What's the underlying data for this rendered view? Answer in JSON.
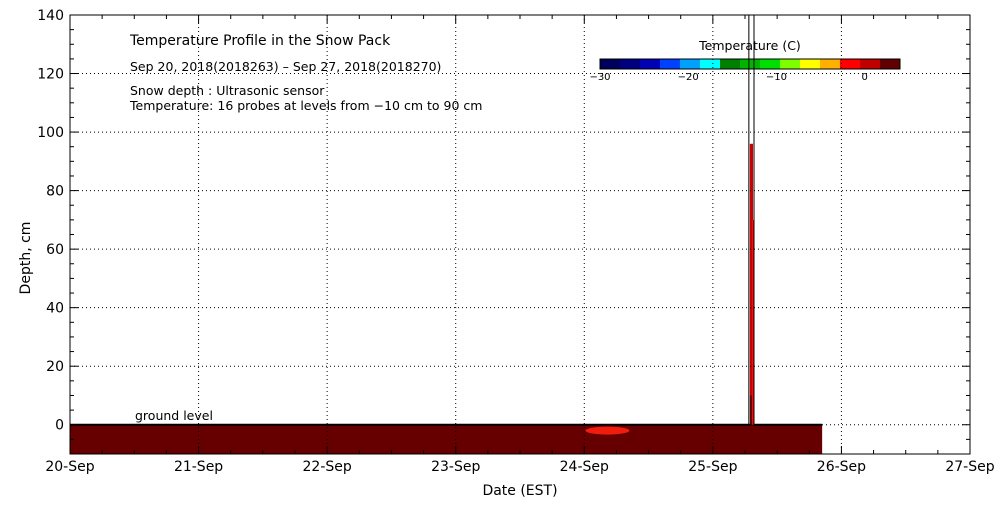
{
  "chart_data": {
    "type": "heatmap",
    "title": "Temperature Profile in the Snow Pack",
    "subtitle": "Sep 20, 2018(2018263) – Sep 27, 2018(2018270)",
    "notes": [
      "Snow depth : Ultrasonic sensor",
      "Temperature: 16 probes at levels from −10 cm to 90 cm"
    ],
    "xlabel": "Date (EST)",
    "ylabel": "Depth, cm",
    "ground_label": "ground level",
    "x_ticks": [
      "20-Sep",
      "21-Sep",
      "22-Sep",
      "23-Sep",
      "24-Sep",
      "25-Sep",
      "26-Sep",
      "27-Sep"
    ],
    "xlim_days": [
      0,
      7
    ],
    "y_ticks": [
      0,
      20,
      40,
      60,
      80,
      100,
      120,
      140
    ],
    "ylim": [
      -10,
      140
    ],
    "grid": true,
    "colorbar": {
      "title": "Temperature (C)",
      "range": [
        -30,
        4
      ],
      "tick_values": [
        -30,
        -20,
        -10,
        0
      ],
      "tick_labels": [
        "−30",
        "−20",
        "−10",
        "0"
      ],
      "colors": [
        "#00005a",
        "#000080",
        "#0000b4",
        "#0040ff",
        "#00a0ff",
        "#00ffff",
        "#008000",
        "#00b400",
        "#00e000",
        "#80ff00",
        "#ffff00",
        "#ffb000",
        "#ff0000",
        "#c00000",
        "#600000"
      ]
    },
    "ground_temperature_band": {
      "depth_range": [
        -10,
        0
      ],
      "x_range_days": [
        0,
        5.85
      ],
      "color": "#660000"
    },
    "warm_spot": {
      "x_days": 4.18,
      "depth": -2,
      "color": "#ff2010"
    },
    "snow_depth_spike": {
      "x_days": [
        5.28,
        5.32
      ],
      "depth_max": 140,
      "temp_column_max_depth": 96,
      "colors": [
        "#cc0000",
        "#660000"
      ]
    }
  }
}
